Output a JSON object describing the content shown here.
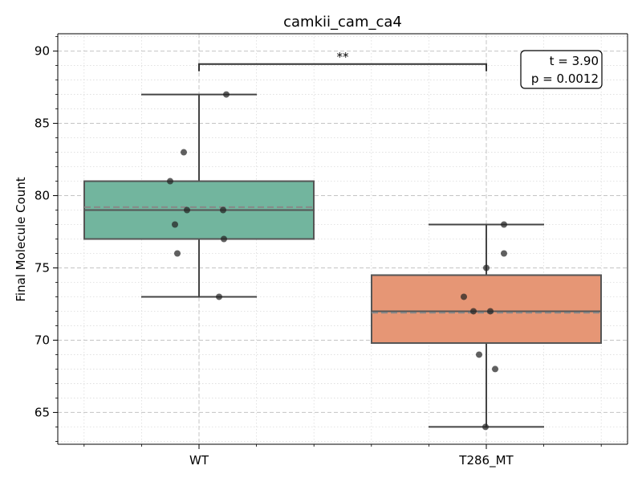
{
  "chart_data": {
    "type": "box",
    "title": "camkii_cam_ca4",
    "xlabel": "",
    "ylabel": "Final Molecule Count",
    "ylim": [
      62.8,
      91.2
    ],
    "yticks": [
      65,
      70,
      75,
      80,
      85,
      90
    ],
    "grid": true,
    "categories": [
      "WT",
      "T286_MT"
    ],
    "colors": [
      "#72b59e",
      "#e69675"
    ],
    "boxes": [
      {
        "category": "WT",
        "whisker_low": 73,
        "q1": 77,
        "median": 79,
        "mean": 79.2,
        "q3": 81,
        "whisker_high": 87
      },
      {
        "category": "T286_MT",
        "whisker_low": 64,
        "q1": 69.8,
        "median": 72,
        "mean": 71.9,
        "q3": 74.5,
        "whisker_high": 78
      }
    ],
    "points": [
      {
        "category": "WT",
        "values": [
          87,
          83,
          81,
          79,
          79,
          78,
          77,
          76,
          73
        ]
      },
      {
        "category": "T286_MT",
        "values": [
          78,
          76,
          75,
          73,
          72,
          72,
          69,
          68,
          64
        ]
      }
    ],
    "significance": {
      "label": "**"
    },
    "stats_box": {
      "line1": "t = 3.90",
      "line2": "p = 0.0012"
    }
  }
}
